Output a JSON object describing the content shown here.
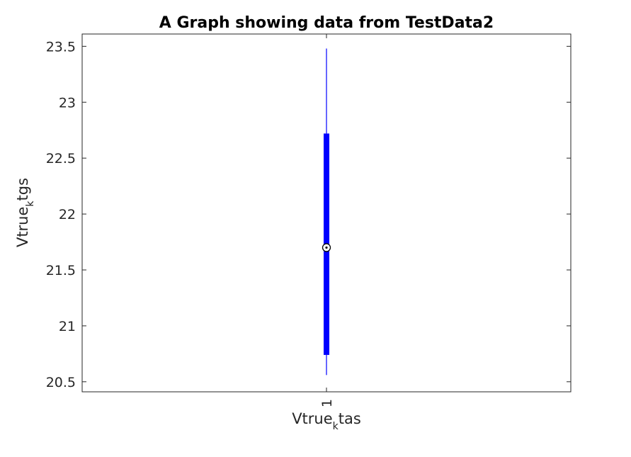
{
  "chart_data": {
    "type": "box",
    "title": "A Graph showing data from TestData2",
    "xlabel": {
      "base": "Vtrue",
      "sub": "k",
      "rest": "tas"
    },
    "ylabel": {
      "base": "Vtrue",
      "sub": "k",
      "rest": "tgs"
    },
    "categories": [
      "1"
    ],
    "ylim": [
      20.41,
      23.61
    ],
    "yticks": [
      20.5,
      21,
      21.5,
      22,
      22.5,
      23,
      23.5
    ],
    "ytick_labels": [
      "20.5",
      "21",
      "21.5",
      "22",
      "22.5",
      "23",
      "23.5"
    ],
    "grid": false,
    "series": [
      {
        "whisker_low": 20.56,
        "q1": 20.74,
        "median": 21.7,
        "q3": 22.72,
        "whisker_high": 23.48
      }
    ],
    "colors": {
      "box": "#0000ff",
      "axis": "#262626",
      "median_marker": "#000000"
    }
  }
}
